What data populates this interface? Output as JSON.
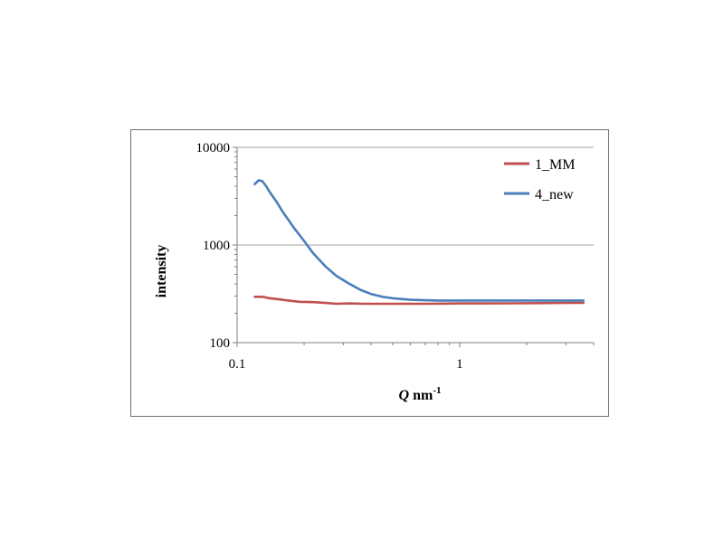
{
  "chart_data": {
    "type": "line",
    "xscale": "log",
    "yscale": "log",
    "xlabel": {
      "main": "Q",
      "unit": " nm",
      "sup": "-1"
    },
    "ylabel": "intensity",
    "xlim": [
      0.1,
      4
    ],
    "ylim": [
      100,
      10000
    ],
    "xticks": [
      {
        "value": 0.1,
        "label": "0.1"
      },
      {
        "value": 1,
        "label": "1"
      }
    ],
    "yticks": [
      {
        "value": 100,
        "label": "100"
      },
      {
        "value": 1000,
        "label": "1000"
      },
      {
        "value": 10000,
        "label": "10000"
      }
    ],
    "grid": {
      "y_major": true,
      "x_major": false
    },
    "legend_position": "top-right",
    "series": [
      {
        "name": "1_MM",
        "color": "#c0504d",
        "x": [
          0.12,
          0.13,
          0.14,
          0.15,
          0.17,
          0.19,
          0.22,
          0.25,
          0.28,
          0.32,
          0.37,
          0.43,
          0.5,
          0.6,
          0.7,
          0.85,
          1.0,
          1.3,
          1.7,
          2.2,
          2.8,
          3.6
        ],
        "y": [
          295,
          295,
          285,
          280,
          270,
          262,
          260,
          255,
          250,
          252,
          250,
          250,
          250,
          250,
          250,
          251,
          252,
          252,
          253,
          254,
          255,
          256
        ]
      },
      {
        "name": "4_new",
        "color": "#4a7ebb",
        "x": [
          0.12,
          0.125,
          0.13,
          0.135,
          0.14,
          0.15,
          0.16,
          0.18,
          0.2,
          0.22,
          0.25,
          0.28,
          0.32,
          0.36,
          0.4,
          0.45,
          0.5,
          0.6,
          0.7,
          0.8,
          1.0,
          1.3,
          1.7,
          2.2,
          2.8,
          3.6
        ],
        "y": [
          4200,
          4600,
          4500,
          4000,
          3500,
          2800,
          2200,
          1500,
          1100,
          820,
          600,
          480,
          400,
          345,
          315,
          295,
          285,
          275,
          272,
          270,
          270,
          270,
          270,
          270,
          270,
          270
        ]
      }
    ]
  }
}
